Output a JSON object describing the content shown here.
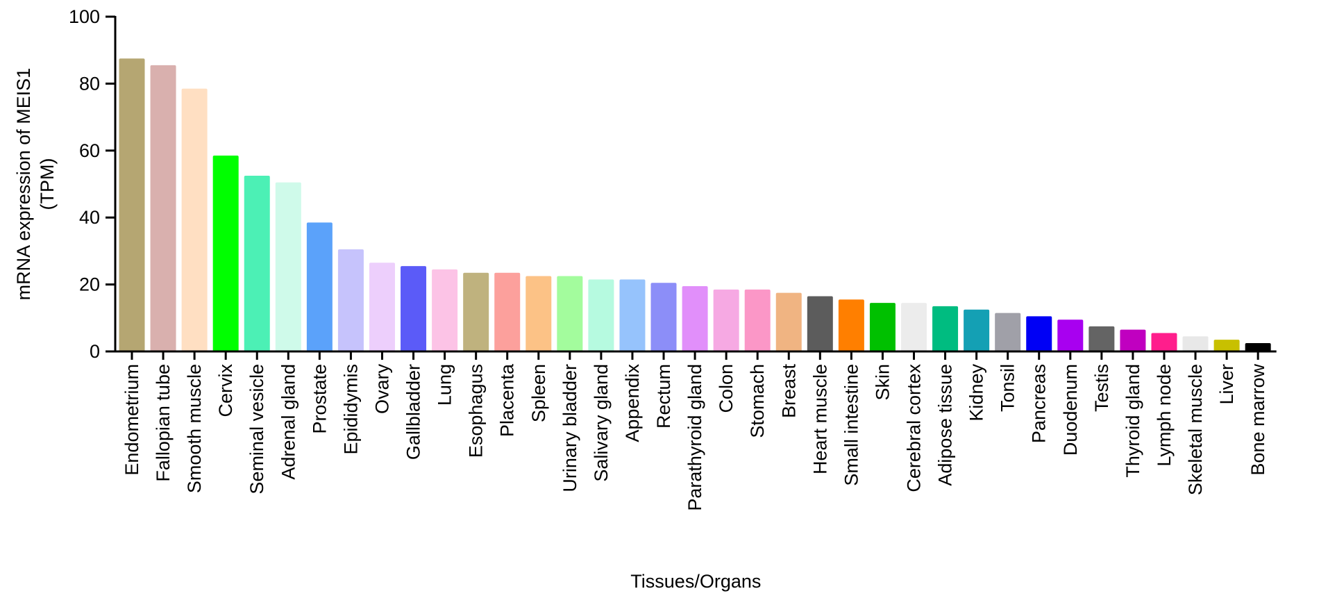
{
  "chart_data": {
    "type": "bar",
    "title": "",
    "xlabel": "Tissues/Organs",
    "ylabel_line1": "mRNA expression of MEIS1",
    "ylabel_line2": "(TPM)",
    "ylim": [
      0,
      100
    ],
    "yticks": [
      0,
      20,
      40,
      60,
      80,
      100
    ],
    "grid": false,
    "legend": "none",
    "categories": [
      "Endometrium",
      "Fallopian tube",
      "Smooth muscle",
      "Cervix",
      "Seminal vesicle",
      "Adrenal gland",
      "Prostate",
      "Epididymis",
      "Ovary",
      "Gallbladder",
      "Lung",
      "Esophagus",
      "Placenta",
      "Spleen",
      "Urinary bladder",
      "Salivary gland",
      "Appendix",
      "Rectum",
      "Parathyroid gland",
      "Colon",
      "Stomach",
      "Breast",
      "Heart muscle",
      "Small intestine",
      "Skin",
      "Cerebral cortex",
      "Adipose tissue",
      "Kidney",
      "Tonsil",
      "Pancreas",
      "Duodenum",
      "Testis",
      "Thyroid gland",
      "Lymph node",
      "Skeletal muscle",
      "Liver",
      "Bone marrow"
    ],
    "values": [
      87.5,
      85.5,
      78.5,
      58.5,
      52.5,
      50.5,
      38.5,
      30.5,
      26.5,
      25.5,
      24.5,
      23.5,
      23.5,
      22.5,
      22.5,
      21.5,
      21.5,
      20.5,
      19.5,
      18.5,
      18.5,
      17.5,
      16.5,
      15.5,
      14.5,
      14.5,
      13.5,
      12.5,
      11.5,
      10.5,
      9.5,
      7.5,
      6.5,
      5.5,
      4.5,
      3.5,
      2.5
    ],
    "colors": [
      "#B5A672",
      "#D9B0AE",
      "#FFDFC2",
      "#00FF00",
      "#4CF0B5",
      "#CFFAEA",
      "#5BA2FA",
      "#C6C3FC",
      "#EDCFFC",
      "#5B5BF8",
      "#FCC3E6",
      "#BFB27E",
      "#FCA09C",
      "#FCC286",
      "#A3FC9D",
      "#B6FAE0",
      "#96C3FC",
      "#8C8EF8",
      "#E18FFA",
      "#F6A9E3",
      "#FB97C7",
      "#F0B482",
      "#5C5C5C",
      "#FF7F00",
      "#00C000",
      "#ECECEC",
      "#00BC80",
      "#14A0B4",
      "#A0A0A8",
      "#0000F5",
      "#A800F0",
      "#646464",
      "#C000C0",
      "#FF1E8C",
      "#E8E8E8",
      "#C8C000",
      "#000000"
    ]
  }
}
